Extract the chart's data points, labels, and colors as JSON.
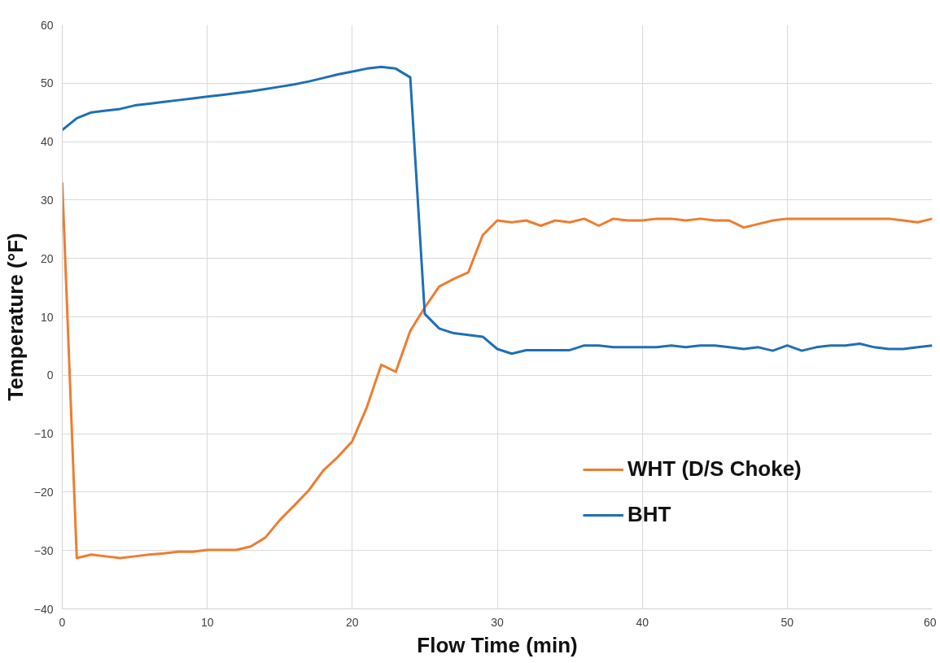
{
  "chart_data": {
    "type": "line",
    "xlabel": "Flow Time (min)",
    "ylabel": "Temperature (°F)",
    "x": [
      0,
      1,
      2,
      3,
      4,
      5,
      6,
      7,
      8,
      9,
      10,
      11,
      12,
      13,
      14,
      15,
      16,
      17,
      18,
      19,
      20,
      21,
      22,
      23,
      24,
      25,
      26,
      27,
      28,
      29,
      30,
      31,
      32,
      33,
      34,
      35,
      36,
      37,
      38,
      39,
      40,
      41,
      42,
      43,
      44,
      45,
      46,
      47,
      48,
      49,
      50,
      51,
      52,
      53,
      54,
      55,
      56,
      57,
      58,
      59,
      60
    ],
    "series": [
      {
        "name": "WHT (D/S Choke)",
        "color": "#ed7d31",
        "values": [
          33,
          -31.3,
          -30.7,
          -31,
          -31.3,
          -31,
          -30.7,
          -30.5,
          -30.2,
          -30.2,
          -29.9,
          -29.9,
          -29.9,
          -29.3,
          -27.8,
          -24.8,
          -22.3,
          -19.7,
          -16.3,
          -14,
          -11.3,
          -5.5,
          1.8,
          0.6,
          7.6,
          11.6,
          15.2,
          16.5,
          17.6,
          24,
          26.5,
          26.2,
          26.5,
          25.6,
          26.5,
          26.2,
          26.8,
          25.6,
          26.8,
          26.5,
          26.5,
          26.8,
          26.8,
          26.5,
          26.8,
          26.5,
          26.5,
          25.3,
          25.9,
          26.5,
          26.8,
          26.8,
          26.8,
          26.8,
          26.8,
          26.8,
          26.8,
          26.8,
          26.5,
          26.2,
          26.8
        ]
      },
      {
        "name": "BHT",
        "color": "#1f6fb5",
        "values": [
          42,
          44,
          45,
          45.3,
          45.6,
          46.2,
          46.5,
          46.8,
          47.1,
          47.4,
          47.7,
          48,
          48.3,
          48.6,
          49,
          49.4,
          49.8,
          50.3,
          50.9,
          51.5,
          52,
          52.5,
          52.8,
          52.5,
          51,
          10.5,
          8,
          7.2,
          6.9,
          6.6,
          4.5,
          3.7,
          4.3,
          4.3,
          4.3,
          4.3,
          5.1,
          5.1,
          4.8,
          4.8,
          4.8,
          4.8,
          5.1,
          4.8,
          5.1,
          5.1,
          4.8,
          4.5,
          4.8,
          4.2,
          5.1,
          4.2,
          4.8,
          5.1,
          5.1,
          5.4,
          4.8,
          4.5,
          4.5,
          4.8,
          5.1
        ]
      }
    ],
    "xlim": [
      0,
      60
    ],
    "xticks": [
      0,
      10,
      20,
      30,
      40,
      50,
      60
    ],
    "ylim": [
      -40,
      60
    ],
    "yticks": [
      -40,
      -30,
      -20,
      -10,
      0,
      10,
      20,
      30,
      40,
      50,
      60
    ],
    "grid": true,
    "legend": "bottom right",
    "line_style": "solid"
  }
}
